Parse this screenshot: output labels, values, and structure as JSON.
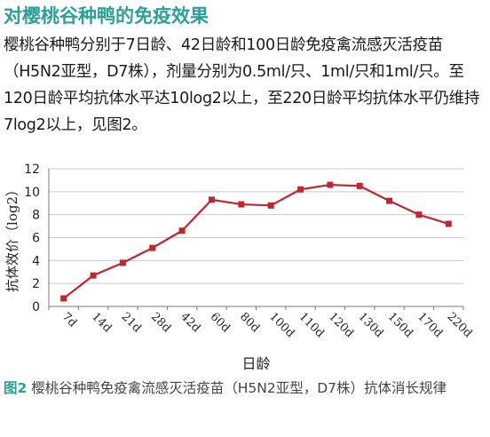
{
  "article": {
    "title": "对樱桃谷种鸭的免疫效果",
    "body": "樱桃谷种鸭分别于7日龄、42日龄和100日龄免疫禽流感灭活疫苗（H5N2亚型，D7株），剂量分别为0.5ml/只、1ml/只和1ml/只。至120日龄平均抗体水平达10log2以上，至220日龄平均抗体水平仍维持7log2以上，见图2。"
  },
  "caption": {
    "figure_number": "图2",
    "text": "樱桃谷种鸭免疫禽流感灭活疫苗（H5N2亚型，D7株）抗体消长规律"
  },
  "chart_data": {
    "type": "line",
    "xlabel": "日龄",
    "ylabel": "抗体效价（log2）",
    "ylim": [
      0,
      12
    ],
    "yticks": [
      0,
      2,
      4,
      6,
      8,
      10,
      12
    ],
    "grid": true,
    "categories": [
      "7d",
      "14d",
      "21d",
      "28d",
      "42d",
      "60d",
      "80d",
      "100d",
      "110d",
      "120d",
      "130d",
      "150d",
      "170d",
      "220d"
    ],
    "series": [
      {
        "color": "#c0272d",
        "values": [
          0.7,
          2.7,
          3.8,
          5.1,
          6.6,
          9.3,
          8.9,
          8.8,
          10.2,
          10.6,
          10.5,
          9.2,
          8.0,
          7.2
        ]
      }
    ]
  }
}
